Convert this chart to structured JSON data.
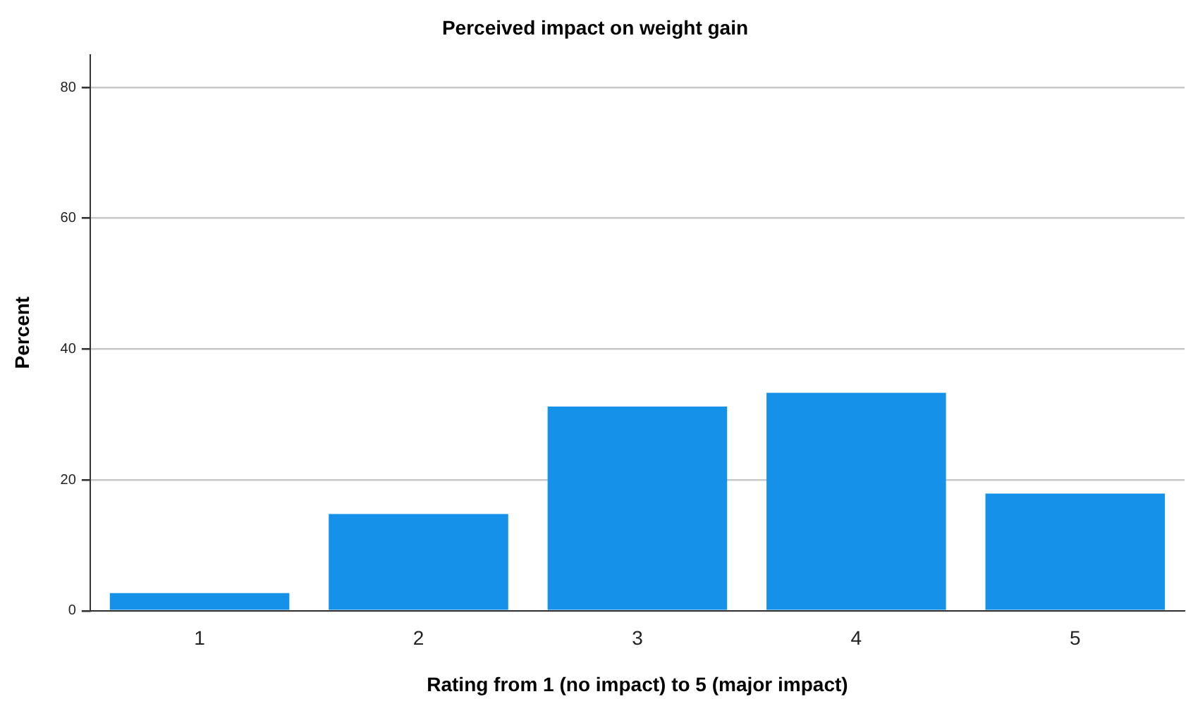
{
  "chart_data": {
    "type": "bar",
    "title": "Perceived impact on weight gain",
    "xlabel": "Rating from 1 (no impact) to 5 (major impact)",
    "ylabel": "Percent",
    "categories": [
      "1",
      "2",
      "3",
      "4",
      "5"
    ],
    "values": [
      2.7,
      14.8,
      31.2,
      33.3,
      17.9
    ],
    "color": "#1591ea",
    "ylim": [
      0,
      85
    ],
    "yticks": [
      0,
      20,
      40,
      60,
      80
    ],
    "grid": "y",
    "legend": false
  }
}
